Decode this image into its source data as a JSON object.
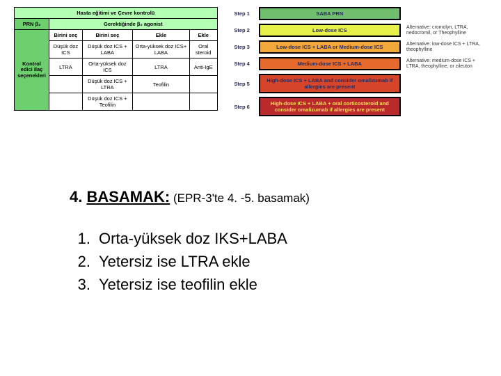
{
  "leftTable": {
    "titleRow": "Hasta eğitimi ve Çevre kontrolü",
    "prnLabel": "PRN β₂",
    "gerekLabel": "Gerektiğinde β₂ agonist",
    "colHeaders": [
      "Birini seç",
      "Birini seç",
      "Ekle",
      "Ekle"
    ],
    "rowLabel": "Kontrol edici ilaç seçenekleri",
    "rows": [
      [
        "Düşük doz ICS",
        "Düşük doz ICS + LABA",
        "Orta-yüksek doz ICS+ LABA",
        "Oral steroid"
      ],
      [
        "LTRA",
        "Orta-yüksek doz ICS",
        "LTRA",
        "Anti-IgE"
      ],
      [
        "",
        "Düşük doz ICS + LTRA",
        "Teofilin",
        ""
      ],
      [
        "",
        "Düşük doz ICS + Teofilin",
        "",
        ""
      ]
    ]
  },
  "steps": {
    "headerLabel": "SABA PRN",
    "items": [
      {
        "step": "Step 1",
        "label": "",
        "alt": ""
      },
      {
        "step": "Step 2",
        "label": "Low-dose ICS",
        "alt": "Alternative: cromolyn, LTRA, nedocromil, or Theophylline"
      },
      {
        "step": "Step 3",
        "label": "Low-dose ICS + LABA or Medium-dose ICS",
        "alt": "Alternative: low-dose ICS + LTRA, theophylline"
      },
      {
        "step": "Step 4",
        "label": "Medium-dose ICS + LABA",
        "alt": "Alternative: medium-dose ICS + LTRA, theophylline, or zileuton"
      },
      {
        "step": "Step 5",
        "label": "High-dose ICS + LABA and consider omalizumab if allergies are present",
        "alt": ""
      },
      {
        "step": "Step 6",
        "label": "High-dose ICS + LABA + oral corticosteroid and consider omalizumab if allergies are present",
        "alt": ""
      }
    ]
  },
  "bottom": {
    "titlePrefix": "4. ",
    "titleUnderlined": "BASAMAK:",
    "titleSuffix": " (EPR-3'te 4. -5. basamak)",
    "list": [
      "Orta-yüksek doz IKS+LABA",
      "Yetersiz ise LTRA ekle",
      "Yetersiz ise teofilin ekle"
    ]
  },
  "styling": {
    "leftTable": {
      "bgHeader": "#b3ffb3",
      "bgLabel": "#6ecf6e",
      "border": "#000000",
      "fontSize": 7.5
    },
    "steps": {
      "colors": [
        "#6fbf6f",
        "#e6f24a",
        "#f2a73a",
        "#e66a2c",
        "#d6452a",
        "#bb2a2a"
      ],
      "borderColor": "#000000",
      "labelColor": "#2a2a5a",
      "fontSize": 7.5
    },
    "bottom": {
      "fontSize": 22,
      "color": "#000000"
    }
  }
}
